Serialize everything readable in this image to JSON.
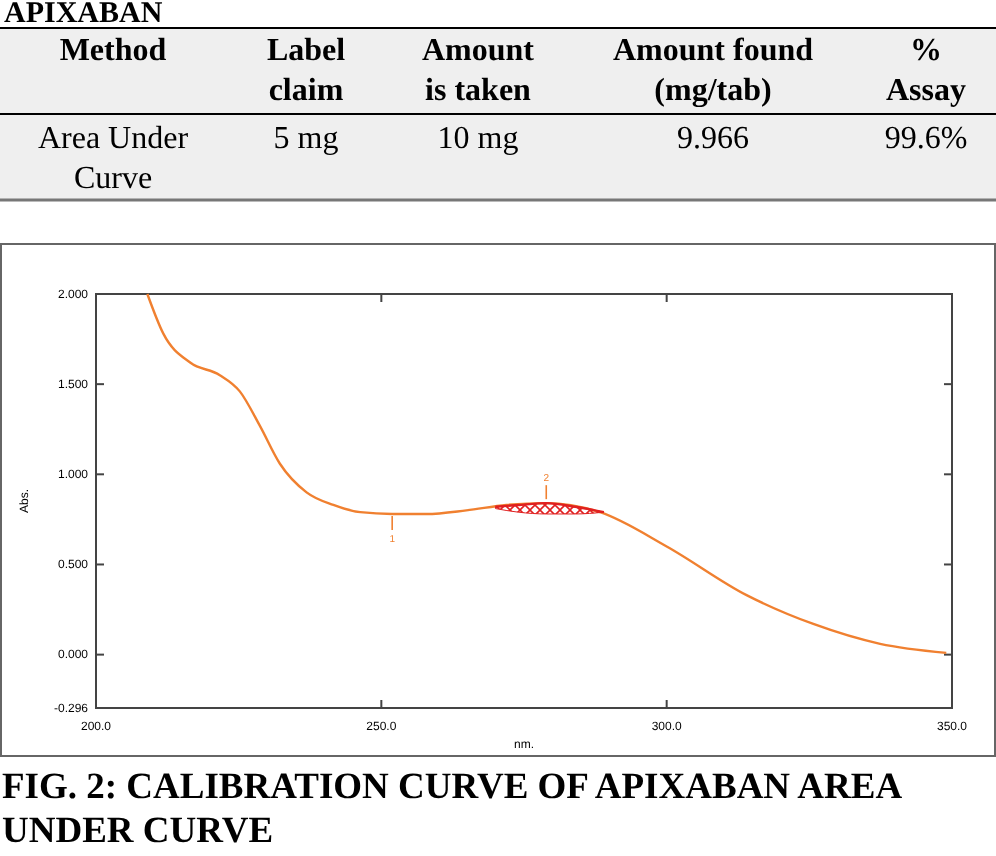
{
  "chart_data": [
    {
      "type": "other",
      "title": "APIXABAN",
      "categories": [
        "Method",
        "Label claim",
        "Amount is taken",
        "Amount found (mg/tab)",
        "% Assay"
      ],
      "annotations": [
        "Area Under Curve",
        "5 mg",
        "10 mg",
        "9.966",
        "99.6%"
      ]
    },
    {
      "type": "line",
      "xlabel": "nm.",
      "ylabel": "Abs.",
      "xlim": [
        200,
        350
      ],
      "ylim": [
        -0.296,
        2.0
      ],
      "xticks": [
        {
          "value": 200,
          "label": "200.0"
        },
        {
          "value": 250,
          "label": "250.0"
        },
        {
          "value": 300,
          "label": "300.0"
        },
        {
          "value": 350,
          "label": "350.0"
        }
      ],
      "yticks": [
        {
          "value": -0.296,
          "label": "-0.296"
        },
        {
          "value": 0,
          "label": "0.000"
        },
        {
          "value": 0.5,
          "label": "0.500"
        },
        {
          "value": 1,
          "label": "1.000"
        },
        {
          "value": 1.5,
          "label": "1.500"
        },
        {
          "value": 2,
          "label": "2.000"
        }
      ],
      "series": [
        {
          "color": "#f08030",
          "x": [
            209,
            211.8,
            216.5,
            221.7,
            225.2,
            228.7,
            232.2,
            236.9,
            241.6,
            246.3,
            251.9,
            257.9,
            264.9,
            271.9,
            278.9,
            288.3,
            300,
            314,
            325.7,
            337.4,
            349
          ],
          "values": [
            2.0,
            1.78,
            1.62,
            1.55,
            1.46,
            1.27,
            1.06,
            0.9,
            0.83,
            0.79,
            0.78,
            0.78,
            0.8,
            0.83,
            0.84,
            0.79,
            0.6,
            0.33,
            0.17,
            0.06,
            0.01
          ]
        },
        {
          "color": "#e02020",
          "x": [
            270,
            274,
            279,
            284,
            289
          ],
          "values": [
            0.82,
            0.83,
            0.84,
            0.82,
            0.79
          ],
          "lower": [
            0.81,
            0.79,
            0.78,
            0.78,
            0.79
          ],
          "upper": [
            0.82,
            0.83,
            0.84,
            0.82,
            0.79
          ]
        }
      ],
      "annotations": [
        {
          "text": "1",
          "x": 251.9,
          "y": 0.78
        },
        {
          "text": "2",
          "x": 278.9,
          "y": 0.84
        },
        "FIG. 2: CALIBRATION CURVE OF APIXABAN AREA UNDER CURVE"
      ]
    }
  ]
}
